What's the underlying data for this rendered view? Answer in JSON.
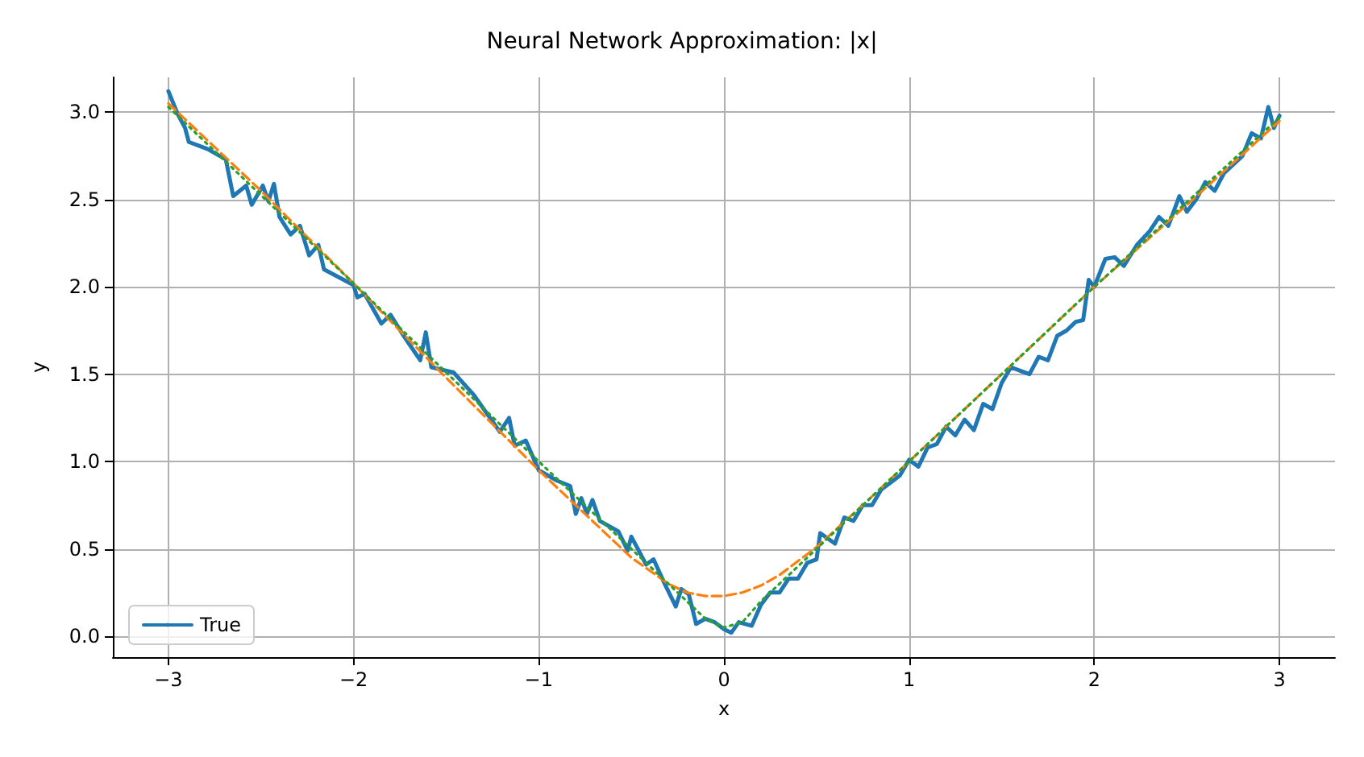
{
  "chart_data": {
    "type": "line",
    "title": "Neural Network Approximation: |x|",
    "xlabel": "x",
    "ylabel": "y",
    "xlim": [
      -3.3,
      3.3
    ],
    "ylim": [
      -0.12,
      3.2
    ],
    "xticks": [
      -3,
      -2,
      -1,
      0,
      1,
      2,
      3
    ],
    "yticks": [
      {
        "value": 0,
        "label": "0.0"
      },
      {
        "value": 0.5,
        "label": "0.5"
      },
      {
        "value": 1,
        "label": "1.0"
      },
      {
        "value": 1.5,
        "label": "1.5"
      },
      {
        "value": 2,
        "label": "2.0"
      },
      {
        "value": 2.5,
        "label": "2.5"
      },
      {
        "value": 3,
        "label": "3.0"
      }
    ],
    "grid": true,
    "legend": "bottom left",
    "marker": "none",
    "series": [
      {
        "name": "True",
        "color": "#1f77b4",
        "line_style": "solid",
        "x": [
          -3,
          -2.95,
          -2.91,
          -2.89,
          -2.79,
          -2.69,
          -2.65,
          -2.58,
          -2.55,
          -2.49,
          -2.46,
          -2.43,
          -2.4,
          -2.34,
          -2.29,
          -2.24,
          -2.19,
          -2.16,
          -2.0,
          -1.98,
          -1.94,
          -1.85,
          -1.8,
          -1.73,
          -1.64,
          -1.61,
          -1.58,
          -1.46,
          -1.35,
          -1.21,
          -1.16,
          -1.13,
          -1.07,
          -1.0,
          -0.9,
          -0.83,
          -0.8,
          -0.77,
          -0.74,
          -0.71,
          -0.67,
          -0.57,
          -0.52,
          -0.5,
          -0.42,
          -0.38,
          -0.32,
          -0.26,
          -0.23,
          -0.19,
          -0.15,
          -0.1,
          -0.05,
          0,
          0.04,
          0.08,
          0.15,
          0.2,
          0.25,
          0.3,
          0.35,
          0.4,
          0.45,
          0.5,
          0.52,
          0.6,
          0.65,
          0.7,
          0.75,
          0.8,
          0.85,
          0.9,
          0.95,
          1.0,
          1.05,
          1.1,
          1.15,
          1.2,
          1.25,
          1.3,
          1.35,
          1.4,
          1.45,
          1.5,
          1.55,
          1.6,
          1.65,
          1.7,
          1.75,
          1.8,
          1.85,
          1.9,
          1.94,
          1.97,
          2.0,
          2.06,
          2.11,
          2.16,
          2.23,
          2.3,
          2.35,
          2.4,
          2.46,
          2.5,
          2.55,
          2.6,
          2.65,
          2.7,
          2.75,
          2.8,
          2.85,
          2.9,
          2.94,
          2.97,
          3.0
        ],
        "values": [
          3.12,
          2.99,
          2.91,
          2.83,
          2.79,
          2.73,
          2.52,
          2.58,
          2.47,
          2.58,
          2.49,
          2.59,
          2.4,
          2.3,
          2.35,
          2.18,
          2.24,
          2.1,
          2.01,
          1.94,
          1.96,
          1.79,
          1.84,
          1.72,
          1.58,
          1.74,
          1.54,
          1.51,
          1.38,
          1.17,
          1.25,
          1.09,
          1.12,
          0.95,
          0.89,
          0.86,
          0.7,
          0.79,
          0.7,
          0.78,
          0.66,
          0.6,
          0.49,
          0.57,
          0.41,
          0.44,
          0.3,
          0.17,
          0.27,
          0.24,
          0.07,
          0.1,
          0.08,
          0.04,
          0.02,
          0.08,
          0.06,
          0.18,
          0.25,
          0.25,
          0.33,
          0.33,
          0.42,
          0.44,
          0.59,
          0.53,
          0.68,
          0.66,
          0.75,
          0.75,
          0.84,
          0.88,
          0.92,
          1.01,
          0.97,
          1.08,
          1.1,
          1.2,
          1.15,
          1.24,
          1.18,
          1.33,
          1.3,
          1.45,
          1.54,
          1.52,
          1.5,
          1.6,
          1.58,
          1.72,
          1.75,
          1.8,
          1.81,
          2.04,
          2.0,
          2.16,
          2.17,
          2.12,
          2.24,
          2.32,
          2.4,
          2.35,
          2.52,
          2.43,
          2.5,
          2.6,
          2.55,
          2.65,
          2.7,
          2.75,
          2.88,
          2.85,
          3.03,
          2.91,
          2.98
        ]
      },
      {
        "color": "#ff7f0e",
        "line_style": "dashed",
        "x": [
          -3,
          -2.5,
          -2,
          -1.5,
          -1,
          -0.5,
          -0.3,
          -0.2,
          -0.1,
          0,
          0.1,
          0.2,
          0.3,
          0.5,
          0.75,
          1,
          1.5,
          2,
          2.5,
          3
        ],
        "values": [
          3.05,
          2.55,
          2.02,
          1.48,
          0.95,
          0.45,
          0.3,
          0.25,
          0.23,
          0.23,
          0.25,
          0.29,
          0.35,
          0.51,
          0.75,
          1.0,
          1.5,
          2.0,
          2.47,
          2.95
        ]
      },
      {
        "color": "#2ca02c",
        "line_style": "dotted",
        "x": [
          -3,
          -2,
          -1,
          -0.5,
          -0.2,
          -0.1,
          0,
          0.1,
          0.2,
          0.5,
          1,
          2,
          3
        ],
        "values": [
          3.03,
          2.02,
          1.0,
          0.5,
          0.2,
          0.1,
          0.05,
          0.08,
          0.2,
          0.5,
          1.0,
          2.0,
          2.97
        ]
      }
    ]
  }
}
